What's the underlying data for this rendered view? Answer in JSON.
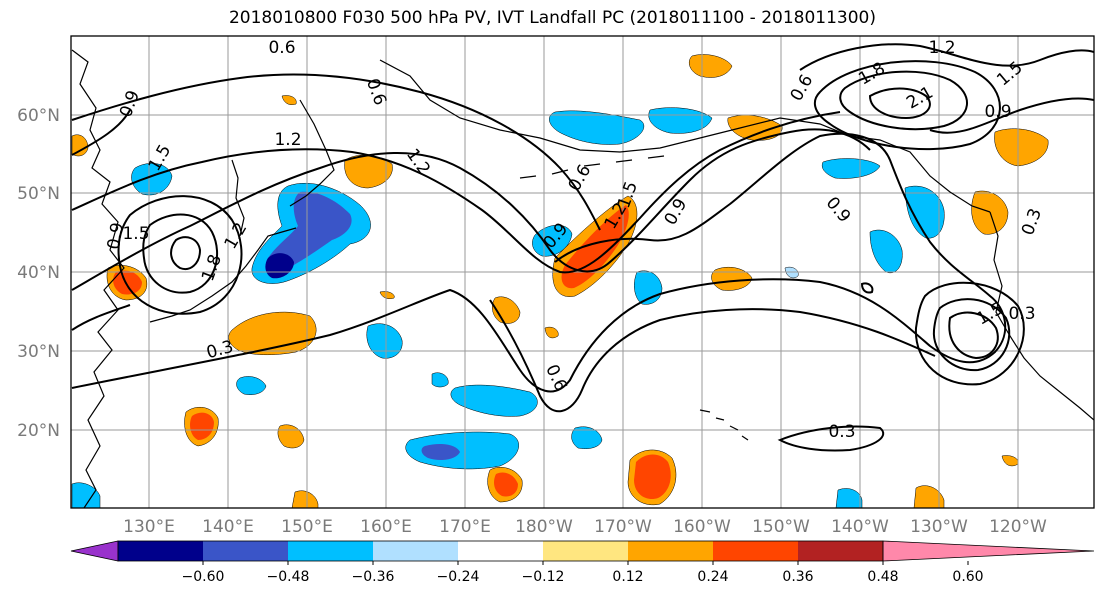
{
  "title": "2018010800 F030 500 hPa PV, IVT Landfall PC (2018011100 - 2018011300)",
  "lat_labels": [
    "60°N",
    "50°N",
    "40°N",
    "30°N",
    "20°N"
  ],
  "lon_labels": [
    "130°E",
    "140°E",
    "150°E",
    "160°E",
    "170°E",
    "180°W",
    "170°W",
    "160°W",
    "150°W",
    "140°W",
    "130°W",
    "120°W"
  ],
  "contour_labels": [
    "0.6",
    "1.2",
    "0.9",
    "0.6",
    "1.2",
    "1.5",
    "0.9",
    "0.6",
    "1.2",
    "1.5",
    "1.8",
    "2.1",
    "0.9",
    "0.3",
    "0.9",
    "1.5",
    "1.8",
    "1.2",
    "0.3",
    "0.6",
    "0.3",
    "0.6",
    "0.9",
    "1.5",
    "0.9",
    "1.2",
    "1.5",
    "0.3"
  ],
  "colorbar": {
    "ticks": [
      "−0.60",
      "−0.48",
      "−0.36",
      "−0.24",
      "−0.12",
      "0.12",
      "0.24",
      "0.36",
      "0.48",
      "0.60"
    ],
    "colors": [
      "#9932cc",
      "#00008b",
      "#3a55c8",
      "#00bfff",
      "#b0e0ff",
      "#ffffff",
      "#ffe680",
      "#ffa500",
      "#ff4500",
      "#b22222",
      "#ff88aa"
    ]
  },
  "palette": {
    "neg_strong": "#3a55c8",
    "neg_darkest": "#00008b",
    "neg_mid": "#00bfff",
    "neg_light": "#b0e0ff",
    "pos_light": "#ffe680",
    "pos_mid": "#ffa500",
    "pos_strong": "#ff4500",
    "pos_darkest": "#b22222"
  }
}
